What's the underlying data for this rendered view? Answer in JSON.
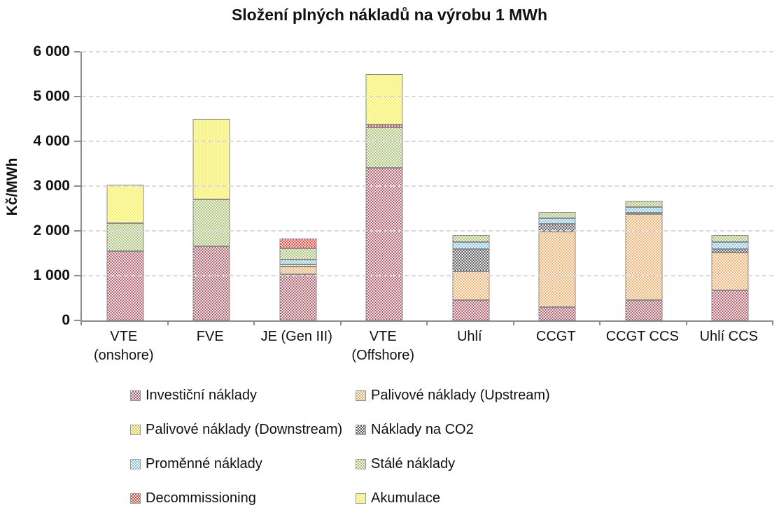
{
  "title": "Složení plných nákladů na výrobu 1 MWh",
  "y_axis": {
    "label": "Kč/MWh",
    "tick_labels": [
      "0",
      "1 000",
      "2 000",
      "3 000",
      "4 000",
      "5 000",
      "6 000"
    ],
    "tick_values": [
      0,
      1000,
      2000,
      3000,
      4000,
      5000,
      6000
    ]
  },
  "chart_data": {
    "type": "bar",
    "stacked": true,
    "title": "Složení plných nákladů na výrobu 1 MWh",
    "xlabel": "",
    "ylabel": "Kč/MWh",
    "ylim": [
      0,
      6000
    ],
    "grid": "horizontal-dashed",
    "legend_position": "bottom",
    "categories": [
      "VTE (onshore)",
      "FVE",
      "JE (Gen III)",
      "VTE (Offshore)",
      "Uhlí",
      "CCGT",
      "CCGT CCS",
      "Uhlí CCS"
    ],
    "categories_display": [
      [
        "VTE",
        "(onshore)"
      ],
      [
        "FVE"
      ],
      [
        "JE (Gen III)"
      ],
      [
        "VTE",
        "(Offshore)"
      ],
      [
        "Uhlí"
      ],
      [
        "CCGT"
      ],
      [
        "CCGT CCS"
      ],
      [
        "Uhlí CCS"
      ]
    ],
    "series": [
      {
        "name": "Investiční náklady",
        "color": "#b0505f",
        "values": [
          1550,
          1660,
          1030,
          3400,
          450,
          300,
          460,
          670
        ]
      },
      {
        "name": "Palivové náklady (Upstream)",
        "color": "#f0a860",
        "values": [
          0,
          0,
          180,
          0,
          650,
          1690,
          1920,
          850
        ]
      },
      {
        "name": "Palivové náklady (Downstream)",
        "color": "#e8c83d",
        "values": [
          0,
          0,
          40,
          0,
          0,
          0,
          0,
          0
        ]
      },
      {
        "name": "Náklady na CO2",
        "color": "#4d4d4d",
        "values": [
          0,
          0,
          0,
          0,
          500,
          170,
          30,
          70
        ]
      },
      {
        "name": "Proměnné náklady",
        "color": "#7fc3e8",
        "values": [
          0,
          0,
          105,
          0,
          155,
          125,
          120,
          165
        ]
      },
      {
        "name": "Stálé náklady",
        "color": "#a3bd6a",
        "values": [
          620,
          1040,
          260,
          910,
          155,
          135,
          140,
          145
        ]
      },
      {
        "name": "Decommissioning",
        "color": "#f03028",
        "values": [
          0,
          0,
          215,
          70,
          0,
          0,
          0,
          0
        ]
      },
      {
        "name": "Akumulace",
        "color": "#faf133",
        "values": [
          860,
          1800,
          0,
          1120,
          0,
          0,
          0,
          0
        ]
      }
    ],
    "totals": [
      3030,
      4500,
      1830,
      5500,
      1910,
      2420,
      2670,
      1900
    ]
  }
}
